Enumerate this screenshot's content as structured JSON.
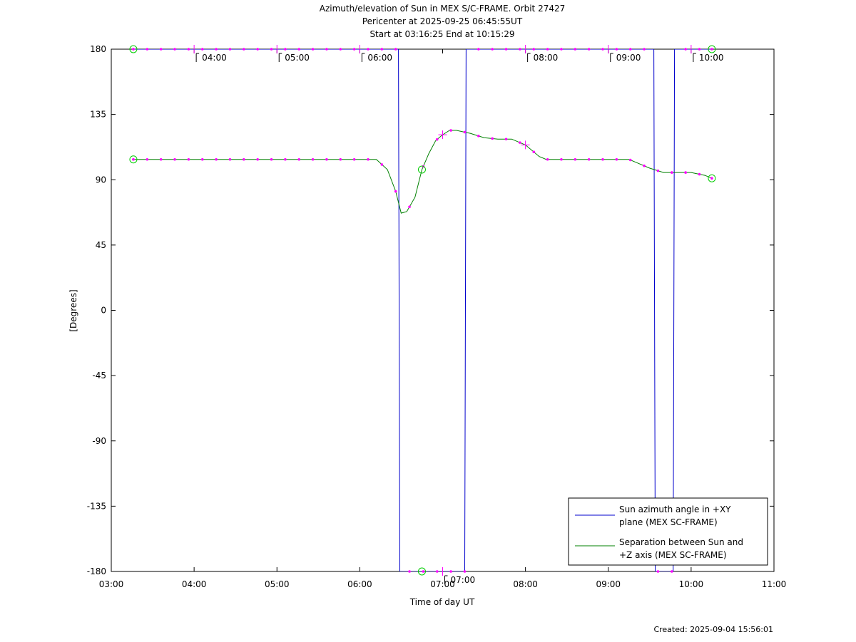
{
  "header": {
    "title_line1": "Azimuth/elevation of Sun in MEX S/C-FRAME.  Orbit 27427",
    "title_line2": "Pericenter at 2025-09-25 06:45:55UT",
    "title_line3": "Start at 03:16:25 End at 10:15:29"
  },
  "footer": {
    "created": "Created: 2025-09-04 15:56:01"
  },
  "chart_data": {
    "type": "line",
    "title": "Azimuth/elevation of Sun in MEX S/C-FRAME.  Orbit 27427",
    "xlabel": "Time of day UT",
    "ylabel": "[Degrees]",
    "xlim": [
      "03:00",
      "11:00"
    ],
    "ylim": [
      -180,
      180
    ],
    "x_ticks": [
      "03:00",
      "04:00",
      "05:00",
      "06:00",
      "07:00",
      "08:00",
      "09:00",
      "10:00",
      "11:00"
    ],
    "y_ticks": [
      180,
      135,
      90,
      45,
      0,
      -45,
      -90,
      -135,
      -180
    ],
    "legend_position": "bottom-right",
    "hour_annotations": [
      {
        "label": "04:00",
        "at": "04:00",
        "value": 180
      },
      {
        "label": "05:00",
        "at": "05:00",
        "value": 180
      },
      {
        "label": "06:00",
        "at": "06:00",
        "value": 180
      },
      {
        "label": "07:00",
        "at": "07:00",
        "value": -180
      },
      {
        "label": "08:00",
        "at": "08:00",
        "value": 180
      },
      {
        "label": "09:00",
        "at": "09:00",
        "value": 180
      },
      {
        "label": "10:00",
        "at": "10:00",
        "value": 180
      }
    ],
    "series": [
      {
        "name": "Sun azimuth angle in +XY plane (MEX SC-FRAME)",
        "color": "#0000cc",
        "points": [
          [
            "03:16",
            180
          ],
          [
            "03:30",
            180
          ],
          [
            "04:00",
            180
          ],
          [
            "04:30",
            180
          ],
          [
            "05:00",
            180
          ],
          [
            "05:30",
            180
          ],
          [
            "06:00",
            180
          ],
          [
            "06:20",
            180
          ],
          [
            "06:28",
            180
          ],
          [
            "06:29",
            -180
          ],
          [
            "06:45",
            -180
          ],
          [
            "07:00",
            -180
          ],
          [
            "07:15",
            -180
          ],
          [
            "07:16",
            -180
          ],
          [
            "07:17",
            180
          ],
          [
            "07:30",
            180
          ],
          [
            "08:00",
            180
          ],
          [
            "08:30",
            180
          ],
          [
            "09:00",
            180
          ],
          [
            "09:20",
            180
          ],
          [
            "09:33",
            180
          ],
          [
            "09:34",
            -180
          ],
          [
            "09:45",
            -180
          ],
          [
            "09:47",
            -180
          ],
          [
            "09:48",
            180
          ],
          [
            "10:00",
            180
          ],
          [
            "10:15",
            180
          ]
        ]
      },
      {
        "name": "Separation between Sun and +Z axis (MEX SC-FRAME)",
        "color": "#008000",
        "points": [
          [
            "03:16",
            104
          ],
          [
            "03:30",
            104
          ],
          [
            "04:00",
            104
          ],
          [
            "05:00",
            104
          ],
          [
            "06:00",
            104
          ],
          [
            "06:12",
            104
          ],
          [
            "06:20",
            97
          ],
          [
            "06:26",
            82
          ],
          [
            "06:30",
            67
          ],
          [
            "06:34",
            68
          ],
          [
            "06:40",
            78
          ],
          [
            "06:45",
            97
          ],
          [
            "06:50",
            108
          ],
          [
            "06:55",
            117
          ],
          [
            "07:00",
            121
          ],
          [
            "07:05",
            124
          ],
          [
            "07:10",
            124
          ],
          [
            "07:20",
            122
          ],
          [
            "07:30",
            119
          ],
          [
            "07:40",
            118
          ],
          [
            "07:50",
            118
          ],
          [
            "08:00",
            114
          ],
          [
            "08:10",
            106
          ],
          [
            "08:15",
            104
          ],
          [
            "08:30",
            104
          ],
          [
            "09:00",
            104
          ],
          [
            "09:15",
            104
          ],
          [
            "09:20",
            102
          ],
          [
            "09:30",
            98
          ],
          [
            "09:40",
            95
          ],
          [
            "10:00",
            95
          ],
          [
            "10:10",
            93
          ],
          [
            "10:15",
            91
          ]
        ]
      }
    ]
  }
}
